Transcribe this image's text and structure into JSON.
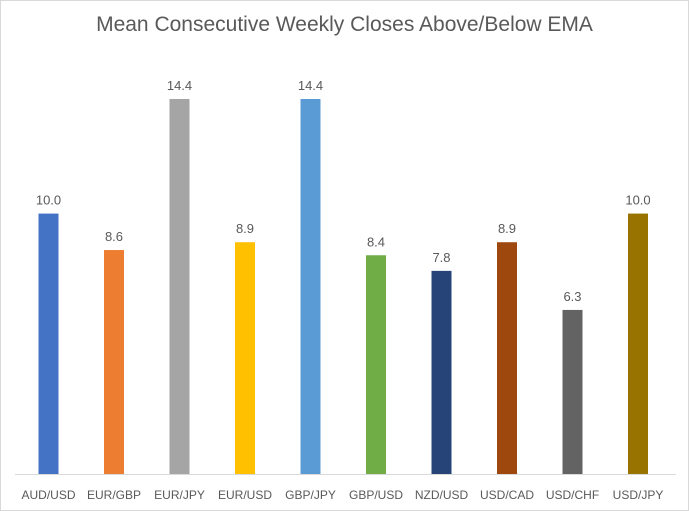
{
  "chart_data": {
    "type": "bar",
    "title": "Mean Consecutive Weekly Closes Above/Below EMA",
    "xlabel": "",
    "ylabel": "",
    "ylim": [
      0,
      14.4
    ],
    "grid": false,
    "legend": "none",
    "categories": [
      "AUD/USD",
      "EUR/GBP",
      "EUR/JPY",
      "EUR/USD",
      "GBP/JPY",
      "GBP/USD",
      "NZD/USD",
      "USD/CAD",
      "USD/CHF",
      "USD/JPY"
    ],
    "values": [
      10.0,
      8.6,
      14.4,
      8.9,
      14.4,
      8.4,
      7.8,
      8.9,
      6.3,
      10.0
    ],
    "value_labels": [
      "10.0",
      "8.6",
      "14.4",
      "8.9",
      "14.4",
      "8.4",
      "7.8",
      "8.9",
      "6.3",
      "10.0"
    ],
    "colors": [
      "#4472C4",
      "#ED7D31",
      "#A5A5A5",
      "#FFC000",
      "#5B9BD5",
      "#70AD47",
      "#264478",
      "#9E480E",
      "#636363",
      "#997300"
    ]
  }
}
